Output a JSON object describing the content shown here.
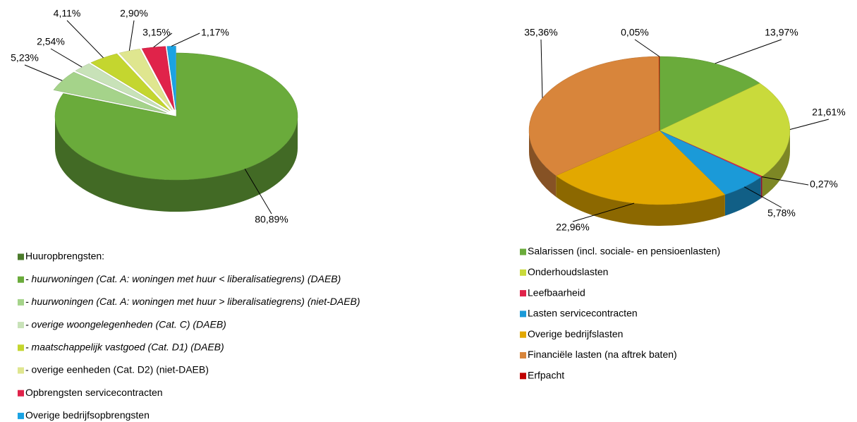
{
  "chart_data": [
    {
      "type": "pie",
      "categories": [
        "Huuropbrengsten:",
        "- huurwoningen (Cat. A: woningen met huur < liberalisatiegrens) (DAEB)",
        "- huurwoningen (Cat. A: woningen met huur > liberalisatiegrens) (niet-DAEB)",
        "- overige woongelegenheden (Cat. C) (DAEB)",
        "- maatschappelijk vastgoed (Cat. D1) (DAEB)",
        "- overige eenheden (Cat. D2) (niet-DAEB)",
        "Opbrengsten servicecontracten",
        "Overige bedrijfsopbrengsten"
      ],
      "values": [
        null,
        80.89,
        5.23,
        2.54,
        4.11,
        2.9,
        3.15,
        1.17
      ],
      "value_labels": [
        null,
        "80,89%",
        "5,23%",
        "2,54%",
        "4,11%",
        "2,90%",
        "3,15%",
        "1,17%"
      ],
      "colors": [
        "#4b7b2b",
        "#6aab3b",
        "#a5d38a",
        "#c8e2b8",
        "#c4d62f",
        "#dfe68f",
        "#e0234a",
        "#1ba3e3"
      ]
    },
    {
      "type": "pie",
      "categories": [
        "Salarissen (incl. sociale- en pensioenlasten)",
        "Onderhoudslasten",
        "Leefbaarheid",
        "Lasten servicecontracten",
        "Overige bedrijfslasten",
        "Financiële lasten (na aftrek baten)",
        "Erfpacht"
      ],
      "values": [
        13.97,
        21.61,
        0.27,
        5.78,
        22.96,
        35.36,
        0.05
      ],
      "value_labels": [
        "13,97%",
        "21,61%",
        "0,27%",
        "5,78%",
        "22,96%",
        "35,36%",
        "0,05%"
      ],
      "colors": [
        "#6aab3b",
        "#c9da3b",
        "#e0234a",
        "#1b9ad8",
        "#e2a800",
        "#d8853b",
        "#c00000"
      ]
    }
  ]
}
